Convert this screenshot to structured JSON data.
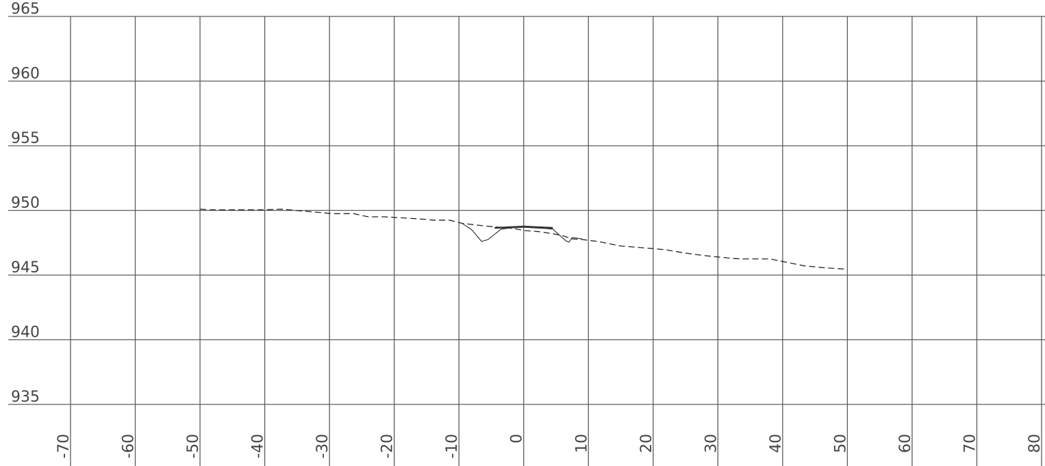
{
  "chart_data": {
    "type": "line",
    "title": "",
    "xlabel": "",
    "ylabel": "",
    "xlim": [
      -70,
      80
    ],
    "ylim": [
      935,
      965
    ],
    "x_ticks": [
      -70,
      -60,
      -50,
      -40,
      -30,
      -20,
      -10,
      0,
      10,
      20,
      30,
      40,
      50,
      60,
      70,
      80
    ],
    "x_tick_labels": [
      "-70",
      "-60",
      "-50",
      "-40",
      "-30",
      "-20",
      "-10",
      "0",
      "10",
      "20",
      "30",
      "40",
      "50",
      "60",
      "70",
      "80"
    ],
    "y_ticks": [
      935,
      940,
      945,
      950,
      955,
      960,
      965
    ],
    "y_tick_labels": [
      "935",
      "940",
      "945",
      "950",
      "955",
      "960",
      "965"
    ],
    "grid": true,
    "legend": "none",
    "series": [
      {
        "style": "dashed",
        "color": "#222222",
        "x": [
          -50,
          -48.6,
          -40,
          -37.4,
          -33,
          -29.5,
          -26.3,
          -24,
          -21.5,
          -18,
          -15,
          -14,
          -11.5,
          -9.5,
          -6,
          -1.5,
          0,
          2.5,
          4.5,
          6,
          7.5,
          9,
          11.5,
          15,
          20,
          22,
          25,
          28,
          32,
          34,
          38,
          41.5,
          43.5,
          47,
          50
        ],
        "y": [
          950.1,
          950.05,
          950.05,
          950.1,
          949.9,
          949.75,
          949.75,
          949.5,
          949.5,
          949.4,
          949.3,
          949.25,
          949.25,
          949.0,
          948.8,
          948.6,
          948.45,
          948.35,
          948.2,
          948.05,
          947.8,
          947.75,
          947.6,
          947.25,
          947.05,
          946.95,
          946.7,
          946.5,
          946.3,
          946.25,
          946.25,
          945.9,
          945.7,
          945.55,
          945.45
        ]
      },
      {
        "style": "solid",
        "color": "#222222",
        "x": [
          -9.5,
          -8,
          -6.5,
          -5.5,
          -4.5,
          -3.5,
          -2,
          0,
          1.5,
          3.5,
          4.5,
          5.5,
          6.5,
          7,
          7.5,
          9
        ],
        "y": [
          949.0,
          948.5,
          947.6,
          947.75,
          948.15,
          948.55,
          948.65,
          948.7,
          948.65,
          948.6,
          948.55,
          948.1,
          947.65,
          947.55,
          947.9,
          947.8
        ]
      },
      {
        "style": "solid-thick",
        "color": "#333333",
        "x": [
          -4.5,
          -2,
          0,
          2,
          4.5
        ],
        "y": [
          948.65,
          948.7,
          948.75,
          948.7,
          948.65
        ]
      }
    ]
  }
}
